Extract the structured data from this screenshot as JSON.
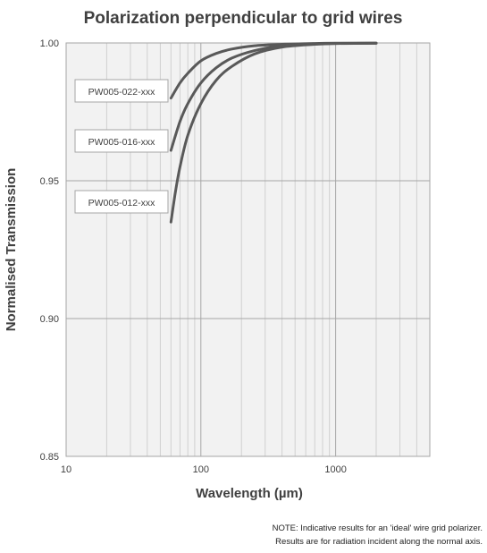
{
  "chart_data": {
    "type": "line",
    "title": "Polarization perpendicular to grid wires",
    "xlabel": "Wavelength (µm)",
    "ylabel": "Normalised Transmission",
    "x_scale": "log",
    "xlim": [
      10,
      5000
    ],
    "ylim": [
      0.85,
      1.0
    ],
    "x_ticks": [
      "10",
      "100",
      "1000"
    ],
    "y_ticks": [
      "0.85",
      "0.90",
      "0.95",
      "1.00"
    ],
    "grid": true,
    "series": [
      {
        "name": "PW005-022-xxx",
        "x": [
          60,
          70,
          80,
          100,
          130,
          170,
          250,
          400,
          700,
          1000,
          2000
        ],
        "y": [
          0.98,
          0.9855,
          0.989,
          0.9935,
          0.9962,
          0.9978,
          0.999,
          0.9995,
          0.9998,
          0.9999,
          0.9999
        ]
      },
      {
        "name": "PW005-016-xxx",
        "x": [
          60,
          70,
          80,
          100,
          130,
          170,
          250,
          400,
          700,
          1000,
          2000
        ],
        "y": [
          0.961,
          0.9715,
          0.978,
          0.9855,
          0.991,
          0.9945,
          0.9972,
          0.999,
          0.9996,
          0.9998,
          0.9999
        ]
      },
      {
        "name": "PW005-012-xxx",
        "x": [
          60,
          65,
          70,
          80,
          100,
          130,
          170,
          250,
          400,
          700,
          1000,
          2000
        ],
        "y": [
          0.935,
          0.9465,
          0.955,
          0.9665,
          0.978,
          0.9865,
          0.9915,
          0.996,
          0.9985,
          0.9995,
          0.9998,
          0.9999
        ]
      }
    ],
    "colors": {
      "line": "#595959",
      "plot_bg": "#f2f2f2",
      "grid": "#bfbfbf",
      "text": "#404040"
    }
  },
  "note": {
    "line1": "NOTE: Indicative results for an 'ideal' wire grid polarizer.",
    "line2": "Results are for radiation incident along the normal axis."
  }
}
